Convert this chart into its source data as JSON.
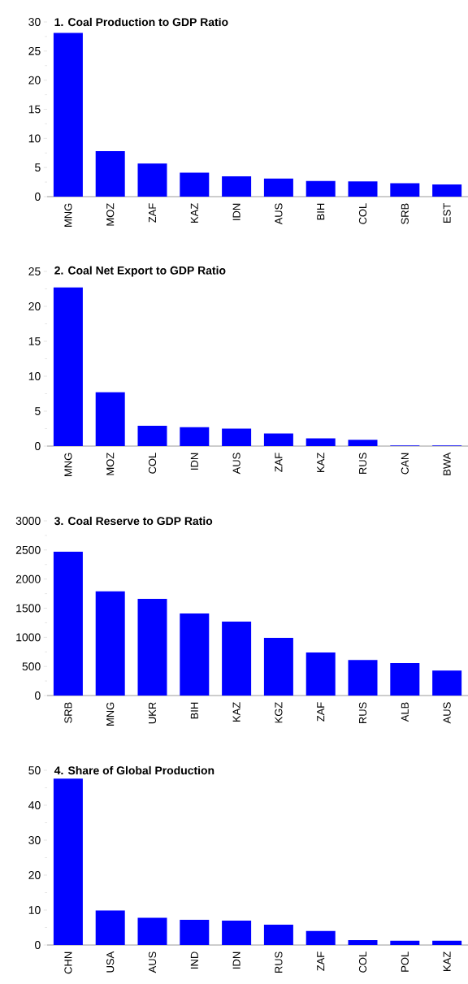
{
  "chart_data": [
    {
      "type": "bar",
      "title": "1. Coal Production to GDP Ratio",
      "categories": [
        "MNG",
        "MOZ",
        "ZAF",
        "KAZ",
        "IDN",
        "AUS",
        "BIH",
        "COL",
        "SRB",
        "EST"
      ],
      "values": [
        28.1,
        7.8,
        5.7,
        4.1,
        3.5,
        3.1,
        2.7,
        2.6,
        2.3,
        2.1
      ],
      "color": "#0000ff",
      "ylim": [
        0,
        30
      ],
      "yticks": [
        0,
        5,
        10,
        15,
        20,
        25,
        30
      ],
      "grid": false
    },
    {
      "type": "bar",
      "title": "2. Coal Net Export to GDP Ratio",
      "categories": [
        "MNG",
        "MOZ",
        "COL",
        "IDN",
        "AUS",
        "ZAF",
        "KAZ",
        "RUS",
        "CAN",
        "BWA"
      ],
      "values": [
        22.7,
        7.7,
        2.9,
        2.7,
        2.5,
        1.8,
        1.1,
        0.9,
        0.1,
        0.1
      ],
      "color": "#0000ff",
      "ylim": [
        0,
        25
      ],
      "yticks": [
        0,
        5,
        10,
        15,
        20,
        25
      ],
      "grid": false
    },
    {
      "type": "bar",
      "title": "3. Coal Reserve to GDP Ratio",
      "categories": [
        "SRB",
        "MNG",
        "UKR",
        "BIH",
        "KAZ",
        "KGZ",
        "ZAF",
        "RUS",
        "ALB",
        "AUS"
      ],
      "values": [
        2470,
        1790,
        1660,
        1410,
        1270,
        990,
        740,
        610,
        560,
        430
      ],
      "color": "#0000ff",
      "ylim": [
        0,
        3000
      ],
      "yticks": [
        0,
        500,
        1000,
        1500,
        2000,
        2500,
        3000
      ],
      "grid": false
    },
    {
      "type": "bar",
      "title": "4. Share of Global Production",
      "categories": [
        "CHN",
        "USA",
        "AUS",
        "IND",
        "IDN",
        "RUS",
        "ZAF",
        "COL",
        "POL",
        "KAZ"
      ],
      "values": [
        47.6,
        9.9,
        7.8,
        7.2,
        7.0,
        5.8,
        4.0,
        1.4,
        1.2,
        1.2
      ],
      "color": "#0000ff",
      "ylim": [
        0,
        50
      ],
      "yticks": [
        0,
        10,
        20,
        30,
        40,
        50
      ],
      "grid": false
    }
  ]
}
